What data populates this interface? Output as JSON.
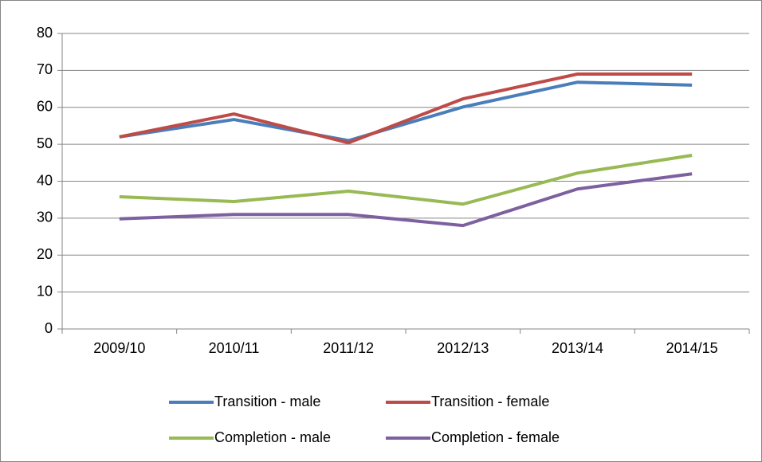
{
  "chart_data": {
    "type": "line",
    "categories": [
      "2009/10",
      "2010/11",
      "2011/12",
      "2012/13",
      "2013/14",
      "2014/15"
    ],
    "series": [
      {
        "name": "Transition - male",
        "color": "#4a7ebb",
        "values": [
          52,
          56.7,
          51,
          60.1,
          66.8,
          66
        ]
      },
      {
        "name": "Transition - female",
        "color": "#be4b48",
        "values": [
          52,
          58.2,
          50.4,
          62.3,
          69,
          69
        ]
      },
      {
        "name": "Completion - male",
        "color": "#98b954",
        "values": [
          35.8,
          34.5,
          37.3,
          33.8,
          42.2,
          47
        ]
      },
      {
        "name": "Completion - female",
        "color": "#7d60a0",
        "values": [
          29.8,
          31,
          31,
          28,
          37.9,
          42
        ]
      }
    ],
    "ylim": [
      0,
      80
    ],
    "yticks": [
      0,
      10,
      20,
      30,
      40,
      50,
      60,
      70,
      80
    ],
    "grid": true,
    "legend": "bottom"
  }
}
